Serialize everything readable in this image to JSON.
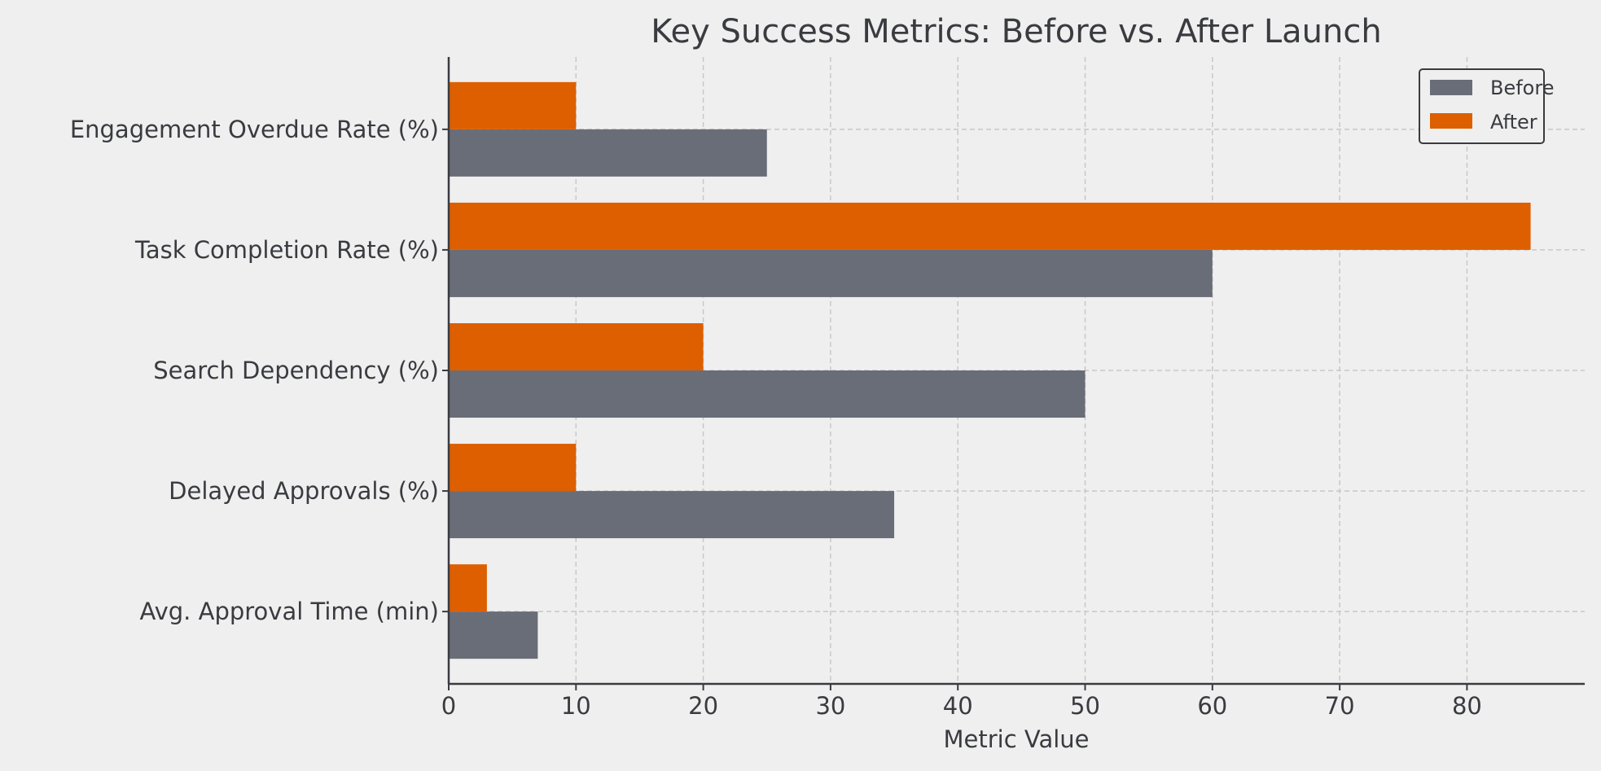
{
  "chart_data": {
    "type": "bar",
    "orientation": "horizontal",
    "title": "Key Success Metrics: Before vs. After Launch",
    "xlabel": "Metric Value",
    "ylabel": "",
    "categories": [
      "Avg. Approval Time (min)",
      "Delayed Approvals (%)",
      "Search Dependency (%)",
      "Task Completion Rate (%)",
      "Engagement Overdue Rate (%)"
    ],
    "series": [
      {
        "name": "Before",
        "color": "#696d77",
        "values": [
          7,
          35,
          50,
          60,
          25
        ]
      },
      {
        "name": "After",
        "color": "#dd5f00",
        "values": [
          3,
          10,
          20,
          85,
          10
        ]
      }
    ],
    "xlim": [
      0,
      89.25
    ],
    "xticks": [
      0,
      10,
      20,
      30,
      40,
      50,
      60,
      70,
      80
    ],
    "grid": true,
    "legend": "top-right"
  }
}
